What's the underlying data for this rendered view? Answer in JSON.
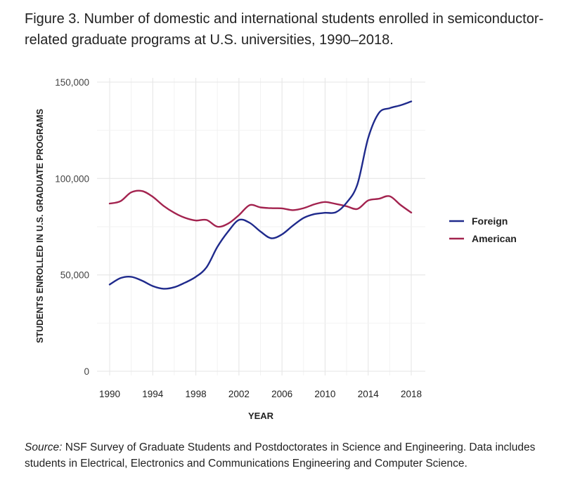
{
  "figure": {
    "title": "Figure 3. Number of domestic and international students enrolled in semiconductor-related graduate programs at U.S. universities, 1990–2018.",
    "source_label": "Source:",
    "source_text": " NSF Survey of Graduate Students and Postdoctorates in Science and Engineering. Data includes students in Electrical, Electronics and Communications Engineering and Computer Science."
  },
  "chart_data": {
    "type": "line",
    "title": "Figure 3. Number of domestic and international students enrolled in semiconductor-related graduate programs at U.S. universities, 1990–2018.",
    "xlabel": "YEAR",
    "ylabel": "STUDENTS ENROLLED IN U.S. GRADUATE PROGRAMS",
    "xlim": [
      1990,
      2018
    ],
    "ylim": [
      0,
      150000
    ],
    "xticks": [
      1990,
      1994,
      1998,
      2002,
      2006,
      2010,
      2014,
      2018
    ],
    "xtick_labels": [
      "1990",
      "1994",
      "1998",
      "2002",
      "2006",
      "2010",
      "2014",
      "2018"
    ],
    "yticks": [
      0,
      50000,
      100000,
      150000
    ],
    "ytick_labels": [
      "0",
      "50,000",
      "100,000",
      "150,000"
    ],
    "grid": true,
    "legend_position": "right",
    "x": [
      1990,
      1991,
      1992,
      1993,
      1994,
      1995,
      1996,
      1997,
      1998,
      1999,
      2000,
      2001,
      2002,
      2003,
      2004,
      2005,
      2006,
      2007,
      2008,
      2009,
      2010,
      2011,
      2012,
      2013,
      2014,
      2015,
      2016,
      2017,
      2018
    ],
    "series": [
      {
        "name": "Foreign",
        "color": "#1f2a8c",
        "values": [
          45000,
          48300,
          49000,
          47000,
          44200,
          42800,
          43600,
          46000,
          49000,
          54000,
          64500,
          72500,
          78500,
          77000,
          72500,
          69000,
          71000,
          75500,
          79500,
          81500,
          82200,
          82500,
          87500,
          97000,
          121000,
          134000,
          136500,
          138000,
          140000
        ]
      },
      {
        "name": "American",
        "color": "#a3234f",
        "values": [
          87000,
          88200,
          92800,
          93500,
          90500,
          85800,
          82200,
          79600,
          78200,
          78500,
          75000,
          76600,
          81000,
          86200,
          85000,
          84600,
          84500,
          83600,
          84600,
          86600,
          87800,
          86800,
          85600,
          84200,
          88600,
          89500,
          90800,
          86300,
          82300
        ]
      }
    ]
  }
}
